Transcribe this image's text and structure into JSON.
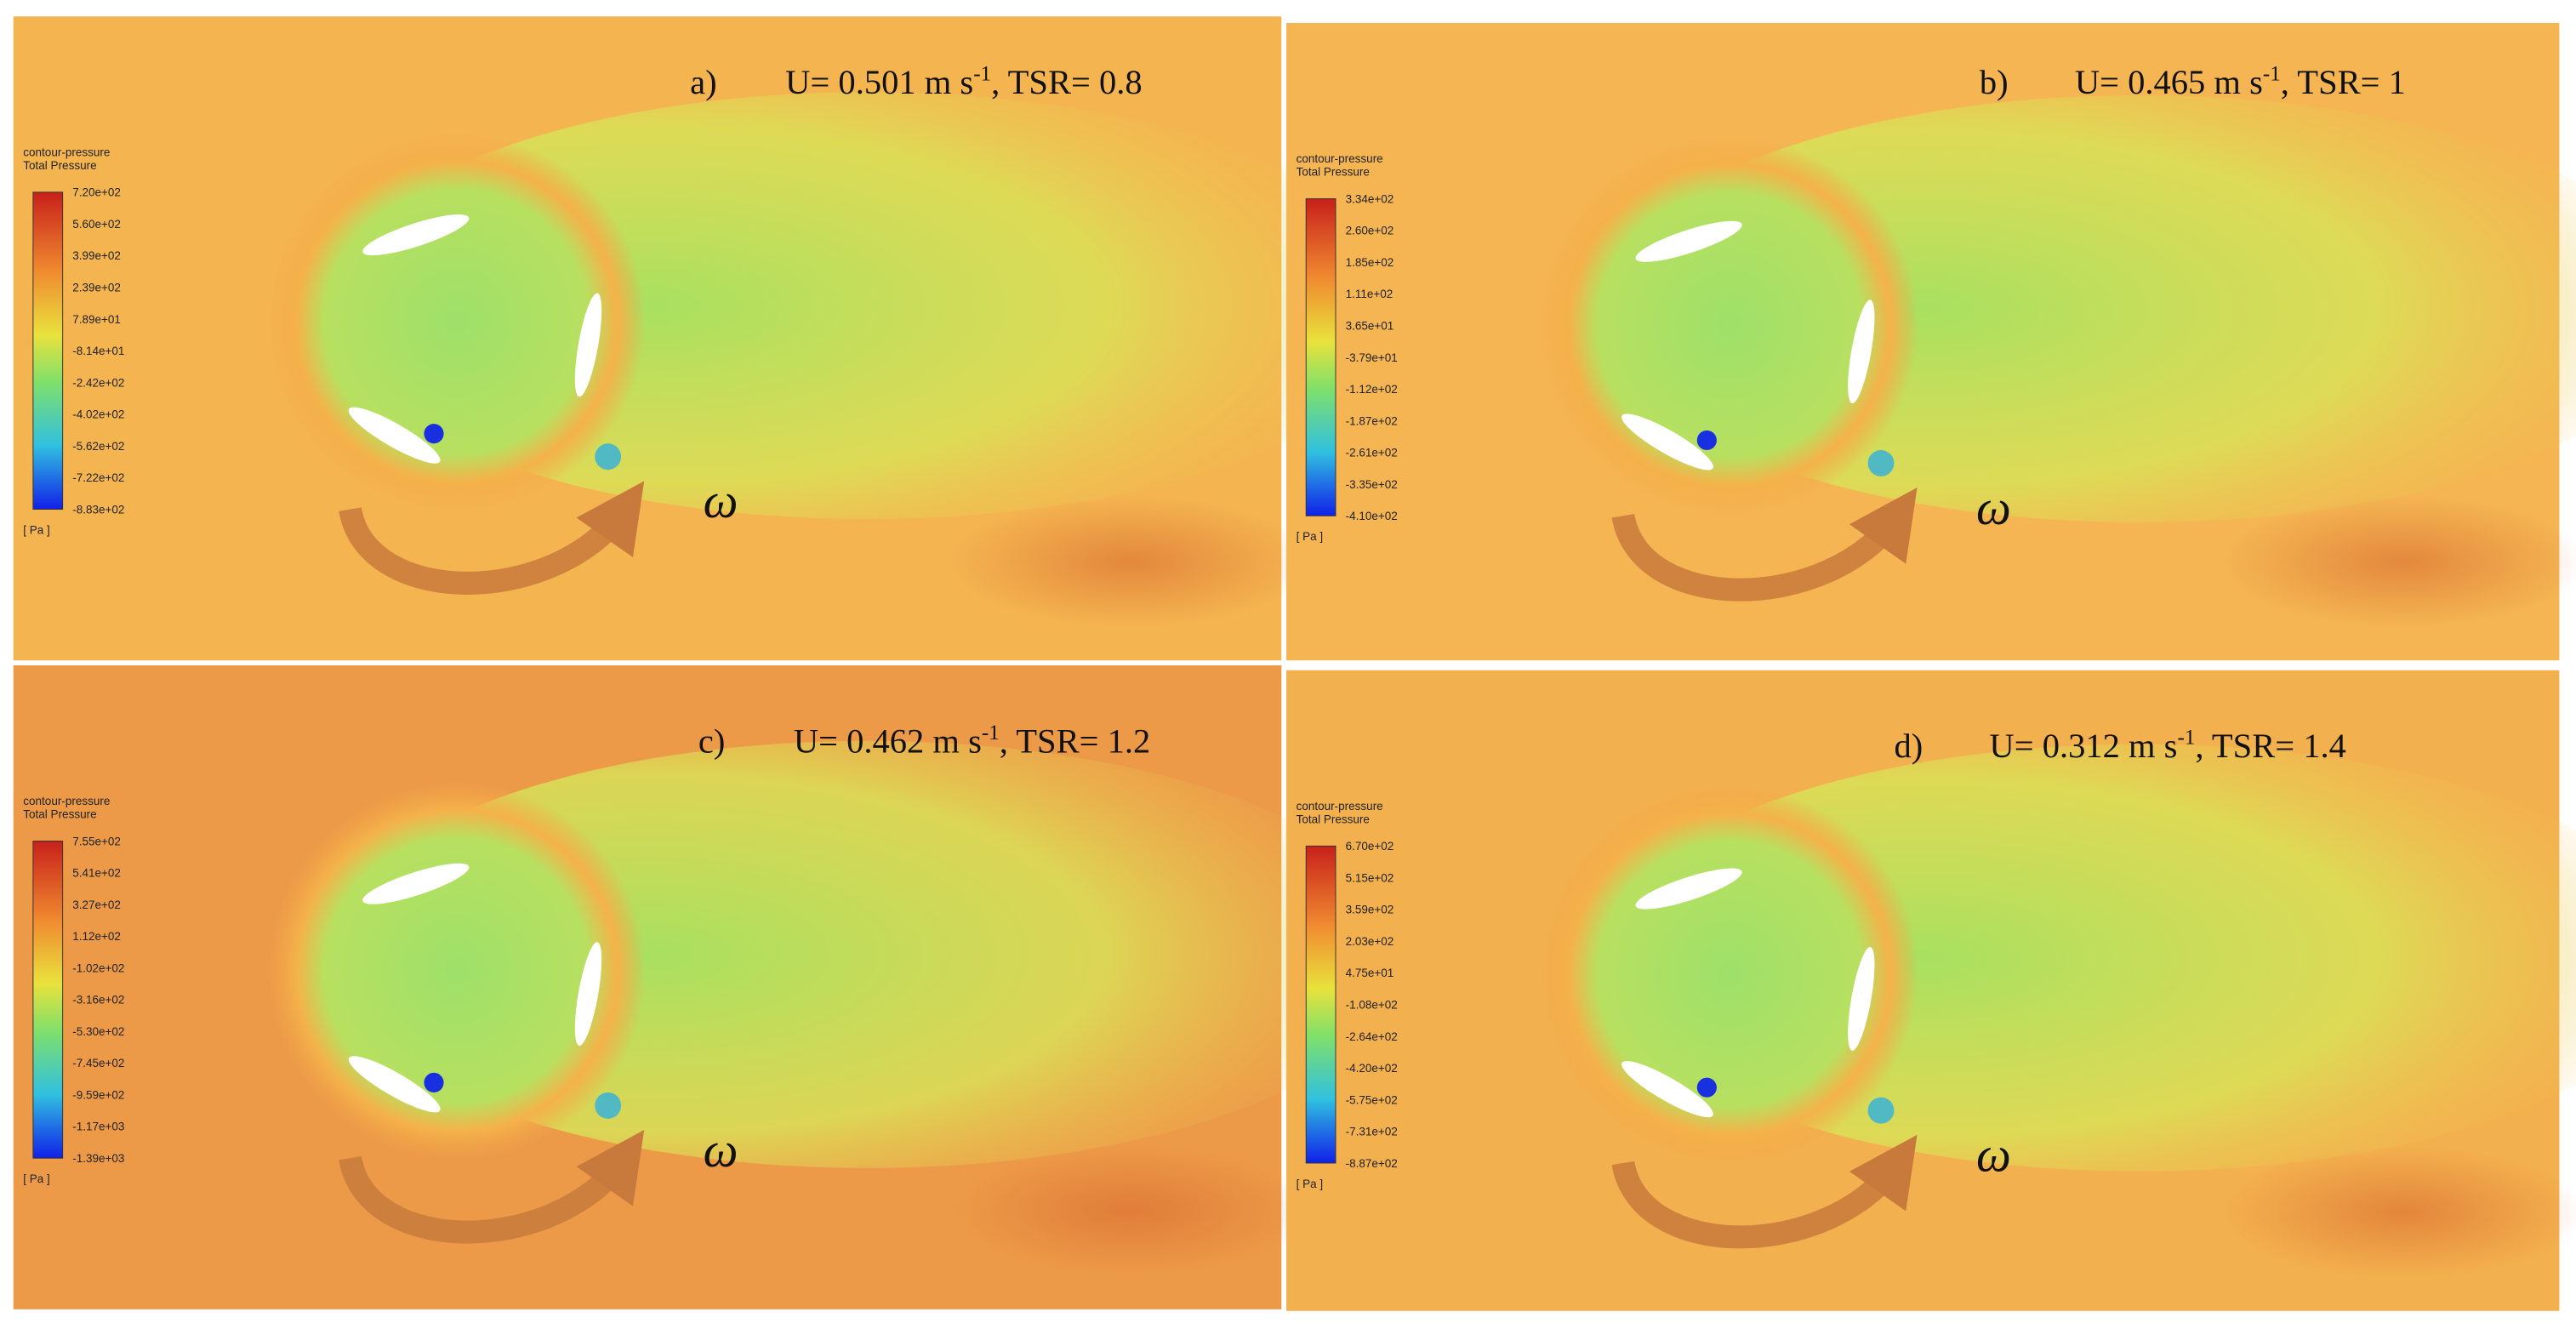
{
  "panels": [
    {
      "label": "a)",
      "caption": {
        "main": "U= 0.501 m s",
        "sup": "-1",
        "rest": ", TSR= 0.8"
      },
      "legend": {
        "title": "contour-pressure",
        "subtitle": "Total Pressure",
        "unit": "[ Pa ]",
        "ticks": [
          "7.20e+02",
          "5.60e+02",
          "3.99e+02",
          "2.39e+02",
          "7.89e+01",
          "-8.14e+01",
          "-2.42e+02",
          "-4.02e+02",
          "-5.62e+02",
          "-7.22e+02",
          "-8.83e+02"
        ]
      },
      "omega": "ω"
    },
    {
      "label": "b)",
      "caption": {
        "main": "U= 0.465 m s",
        "sup": "-1",
        "rest": ", TSR= 1"
      },
      "legend": {
        "title": "contour-pressure",
        "subtitle": "Total Pressure",
        "unit": "[ Pa ]",
        "ticks": [
          "3.34e+02",
          "2.60e+02",
          "1.85e+02",
          "1.11e+02",
          "3.65e+01",
          "-3.79e+01",
          "-1.12e+02",
          "-1.87e+02",
          "-2.61e+02",
          "-3.35e+02",
          "-4.10e+02"
        ]
      },
      "omega": "ω"
    },
    {
      "label": "c)",
      "caption": {
        "main": "U= 0.462 m s",
        "sup": "-1",
        "rest": ", TSR= 1.2"
      },
      "legend": {
        "title": "contour-pressure",
        "subtitle": "Total Pressure",
        "unit": "[ Pa ]",
        "ticks": [
          "7.55e+02",
          "5.41e+02",
          "3.27e+02",
          "1.12e+02",
          "-1.02e+02",
          "-3.16e+02",
          "-5.30e+02",
          "-7.45e+02",
          "-9.59e+02",
          "-1.17e+03",
          "-1.39e+03"
        ]
      },
      "omega": "ω"
    },
    {
      "label": "d)",
      "caption": {
        "main": "U= 0.312 m s",
        "sup": "-1",
        "rest": ", TSR= 1.4"
      },
      "legend": {
        "title": "contour-pressure",
        "subtitle": "Total Pressure",
        "unit": "[ Pa ]",
        "ticks": [
          "6.70e+02",
          "5.15e+02",
          "3.59e+02",
          "2.03e+02",
          "4.75e+01",
          "-1.08e+02",
          "-2.64e+02",
          "-4.20e+02",
          "-5.75e+02",
          "-7.31e+02",
          "-8.87e+02"
        ]
      },
      "omega": "ω"
    }
  ]
}
